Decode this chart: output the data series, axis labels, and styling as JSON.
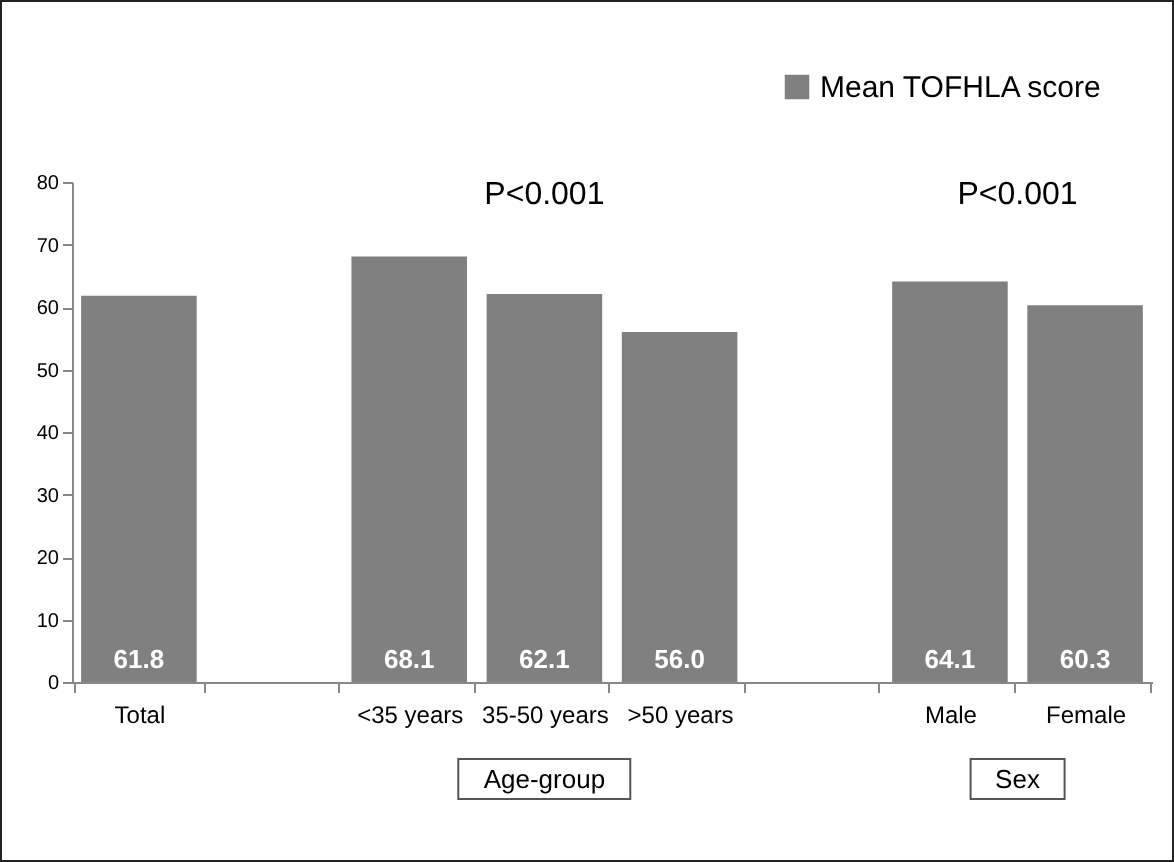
{
  "chart_data": {
    "type": "bar",
    "categories": [
      "Total",
      null,
      "<35 years",
      "35-50 years",
      ">50 years",
      null,
      "Male",
      "Female"
    ],
    "series": [
      {
        "name": "Mean TOFHLA score",
        "color": "#808080",
        "values": [
          61.8,
          null,
          68.1,
          62.1,
          56.0,
          null,
          64.1,
          60.3
        ],
        "value_labels": [
          "61.8",
          null,
          "68.1",
          "62.1",
          "56.0",
          null,
          "64.1",
          "60.3"
        ]
      }
    ],
    "ylim": [
      0,
      80
    ],
    "yticks": [
      0,
      10,
      20,
      30,
      40,
      50,
      60,
      70,
      80
    ],
    "grid": false,
    "legend": "top right",
    "annotations": [
      "P<0.001",
      "P<0.001",
      "Age-group",
      "Sex"
    ]
  }
}
